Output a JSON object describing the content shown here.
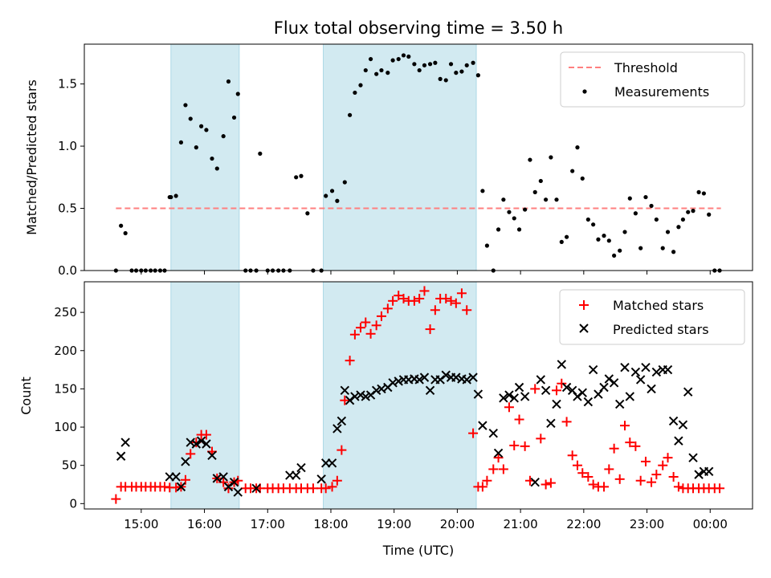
{
  "title": "Flux total observing time = 3.50 h",
  "colors": {
    "threshold": "#ff7f7f",
    "band": "#add8e6",
    "measurement": "#000000",
    "matched": "#ff0000",
    "predicted": "#000000"
  },
  "x_axis": {
    "label": "Time (UTC)",
    "range_hours": [
      14.1,
      24.67
    ],
    "ticks": [
      {
        "value": 15,
        "label": "15:00"
      },
      {
        "value": 16,
        "label": "16:00"
      },
      {
        "value": 17,
        "label": "17:00"
      },
      {
        "value": 18,
        "label": "18:00"
      },
      {
        "value": 19,
        "label": "19:00"
      },
      {
        "value": 20,
        "label": "20:00"
      },
      {
        "value": 21,
        "label": "21:00"
      },
      {
        "value": 22,
        "label": "22:00"
      },
      {
        "value": 23,
        "label": "23:00"
      },
      {
        "value": 24,
        "label": "00:00"
      }
    ]
  },
  "chart_data": [
    {
      "type": "scatter",
      "ylabel": "Matched/Predicted stars",
      "ylim": [
        0,
        1.82
      ],
      "yticks": [
        {
          "value": 0.0,
          "label": "0.0"
        },
        {
          "value": 0.5,
          "label": "0.5"
        },
        {
          "value": 1.0,
          "label": "1.0"
        },
        {
          "value": 1.5,
          "label": "1.5"
        }
      ],
      "bands": [
        [
          15.47,
          16.55
        ],
        [
          17.88,
          20.3
        ]
      ],
      "legend": {
        "position": "top-right",
        "entries": [
          {
            "label": "Threshold",
            "kind": "dashed-line"
          },
          {
            "label": "Measurements",
            "kind": "dot"
          }
        ]
      },
      "threshold": {
        "value": 0.5,
        "x": [
          14.6,
          24.17
        ]
      },
      "series": [
        {
          "name": "Measurements",
          "x": [
            14.6,
            14.68,
            14.75,
            14.85,
            14.92,
            15.0,
            15.07,
            15.15,
            15.22,
            15.3,
            15.37,
            15.45,
            15.47,
            15.55,
            15.63,
            15.7,
            15.78,
            15.87,
            15.95,
            16.03,
            16.12,
            16.2,
            16.3,
            16.38,
            16.47,
            16.53,
            16.65,
            16.73,
            16.82,
            16.88,
            17.0,
            17.08,
            17.17,
            17.25,
            17.35,
            17.45,
            17.53,
            17.63,
            17.72,
            17.85,
            17.92,
            18.02,
            18.1,
            18.22,
            18.3,
            18.38,
            18.47,
            18.55,
            18.63,
            18.72,
            18.8,
            18.9,
            18.98,
            19.07,
            19.15,
            19.23,
            19.32,
            19.4,
            19.48,
            19.57,
            19.65,
            19.73,
            19.82,
            19.9,
            19.98,
            20.07,
            20.15,
            20.25,
            20.33,
            20.4,
            20.47,
            20.57,
            20.65,
            20.73,
            20.82,
            20.9,
            20.98,
            21.07,
            21.15,
            21.23,
            21.32,
            21.4,
            21.48,
            21.57,
            21.65,
            21.73,
            21.82,
            21.9,
            21.98,
            22.07,
            22.15,
            22.23,
            22.32,
            22.4,
            22.48,
            22.57,
            22.65,
            22.73,
            22.82,
            22.9,
            22.98,
            23.07,
            23.15,
            23.25,
            23.33,
            23.42,
            23.5,
            23.57,
            23.65,
            23.73,
            23.82,
            23.9,
            23.98,
            24.07,
            24.15
          ],
          "y": [
            0.0,
            0.36,
            0.3,
            0.0,
            0.0,
            0.0,
            0.0,
            0.0,
            0.0,
            0.0,
            0.0,
            0.59,
            0.59,
            0.6,
            1.03,
            1.33,
            1.22,
            0.99,
            1.16,
            1.13,
            0.9,
            0.82,
            1.08,
            1.52,
            1.23,
            1.42,
            0.0,
            0.0,
            0.0,
            0.94,
            0.0,
            0.0,
            0.0,
            0.0,
            0.0,
            0.75,
            0.76,
            0.46,
            0.0,
            0.0,
            0.6,
            0.64,
            0.56,
            0.71,
            1.25,
            1.43,
            1.49,
            1.61,
            1.7,
            1.58,
            1.61,
            1.59,
            1.69,
            1.7,
            1.73,
            1.72,
            1.66,
            1.61,
            1.65,
            1.66,
            1.67,
            1.54,
            1.53,
            1.66,
            1.59,
            1.6,
            1.65,
            1.67,
            1.57,
            0.64,
            0.2,
            0.0,
            0.33,
            0.57,
            0.47,
            0.42,
            0.33,
            0.49,
            0.89,
            0.63,
            0.72,
            0.57,
            0.91,
            0.57,
            0.23,
            0.27,
            0.8,
            0.99,
            0.74,
            0.41,
            0.37,
            0.25,
            0.28,
            0.24,
            0.12,
            0.16,
            0.31,
            0.58,
            0.46,
            0.18,
            0.59,
            0.52,
            0.41,
            0.18,
            0.31,
            0.15,
            0.35,
            0.41,
            0.47,
            0.48,
            0.63,
            0.62,
            0.45,
            0.0,
            0.0
          ]
        }
      ]
    },
    {
      "type": "scatter",
      "ylabel": "Count",
      "ylim": [
        -7,
        290
      ],
      "yticks": [
        {
          "value": 0,
          "label": "0"
        },
        {
          "value": 50,
          "label": "50"
        },
        {
          "value": 100,
          "label": "100"
        },
        {
          "value": 150,
          "label": "150"
        },
        {
          "value": 200,
          "label": "200"
        },
        {
          "value": 250,
          "label": "250"
        }
      ],
      "bands": [
        [
          15.47,
          16.55
        ],
        [
          17.88,
          20.3
        ]
      ],
      "legend": {
        "position": "top-right",
        "entries": [
          {
            "label": "Matched stars",
            "kind": "plus"
          },
          {
            "label": "Predicted stars",
            "kind": "cross"
          }
        ]
      },
      "series": [
        {
          "name": "Matched stars",
          "marker": "plus",
          "x": [
            14.6,
            14.68,
            14.75,
            14.85,
            14.92,
            15.0,
            15.07,
            15.15,
            15.22,
            15.3,
            15.37,
            15.45,
            15.55,
            15.63,
            15.7,
            15.78,
            15.87,
            15.95,
            16.03,
            16.12,
            16.2,
            16.3,
            16.38,
            16.47,
            16.53,
            16.65,
            16.73,
            16.82,
            16.88,
            17.0,
            17.08,
            17.17,
            17.25,
            17.35,
            17.45,
            17.53,
            17.63,
            17.72,
            17.85,
            17.92,
            18.02,
            18.1,
            18.17,
            18.22,
            18.3,
            18.38,
            18.47,
            18.55,
            18.63,
            18.72,
            18.8,
            18.9,
            18.98,
            19.07,
            19.15,
            19.23,
            19.32,
            19.4,
            19.48,
            19.57,
            19.65,
            19.73,
            19.82,
            19.9,
            19.98,
            20.07,
            20.15,
            20.25,
            20.33,
            20.4,
            20.47,
            20.57,
            20.65,
            20.73,
            20.82,
            20.9,
            20.98,
            21.07,
            21.15,
            21.23,
            21.32,
            21.4,
            21.48,
            21.57,
            21.65,
            21.73,
            21.82,
            21.9,
            21.98,
            22.07,
            22.15,
            22.23,
            22.32,
            22.4,
            22.48,
            22.57,
            22.65,
            22.73,
            22.82,
            22.9,
            22.98,
            23.07,
            23.15,
            23.25,
            23.33,
            23.42,
            23.5,
            23.57,
            23.65,
            23.73,
            23.82,
            23.9,
            23.98,
            24.07,
            24.15
          ],
          "y": [
            6,
            22,
            22,
            22,
            22,
            22,
            22,
            22,
            22,
            22,
            22,
            21,
            21,
            22,
            31,
            65,
            80,
            90,
            90,
            68,
            33,
            28,
            20,
            28,
            30,
            20,
            20,
            20,
            20,
            20,
            20,
            20,
            20,
            20,
            20,
            20,
            20,
            20,
            20,
            20,
            22,
            30,
            70,
            135,
            187,
            221,
            230,
            237,
            222,
            233,
            245,
            255,
            265,
            272,
            268,
            265,
            265,
            268,
            278,
            228,
            253,
            268,
            268,
            265,
            262,
            275,
            253,
            92,
            22,
            22,
            30,
            45,
            60,
            45,
            126,
            76,
            110,
            75,
            30,
            150,
            85,
            25,
            27,
            148,
            157,
            107,
            63,
            50,
            40,
            35,
            25,
            22,
            22,
            45,
            72,
            32,
            102,
            80,
            75,
            30,
            55,
            28,
            38,
            50,
            60,
            35,
            22,
            20,
            20,
            20,
            20,
            20,
            20,
            20,
            20
          ],
          "_yfix": []
        },
        {
          "name": "Predicted stars",
          "marker": "cross",
          "x": [
            14.68,
            14.75,
            15.45,
            15.55,
            15.63,
            15.7,
            15.78,
            15.87,
            15.95,
            16.03,
            16.12,
            16.2,
            16.3,
            16.38,
            16.47,
            16.53,
            16.82,
            17.35,
            17.45,
            17.53,
            17.85,
            17.92,
            18.02,
            18.1,
            18.17,
            18.22,
            18.3,
            18.38,
            18.47,
            18.55,
            18.63,
            18.72,
            18.8,
            18.9,
            18.98,
            19.07,
            19.15,
            19.23,
            19.32,
            19.4,
            19.48,
            19.57,
            19.65,
            19.73,
            19.82,
            19.9,
            19.98,
            20.07,
            20.15,
            20.25,
            20.33,
            20.4,
            20.57,
            20.65,
            20.73,
            20.82,
            20.9,
            20.98,
            21.07,
            21.23,
            21.32,
            21.4,
            21.48,
            21.57,
            21.65,
            21.73,
            21.82,
            21.9,
            21.98,
            22.07,
            22.15,
            22.23,
            22.32,
            22.4,
            22.48,
            22.57,
            22.65,
            22.73,
            22.82,
            22.9,
            22.98,
            23.07,
            23.15,
            23.25,
            23.33,
            23.42,
            23.5,
            23.57,
            23.65,
            23.73,
            23.82,
            23.9,
            23.98
          ],
          "y": [
            62,
            80,
            35,
            35,
            22,
            55,
            80,
            78,
            82,
            78,
            63,
            33,
            35,
            22,
            28,
            15,
            20,
            37,
            37,
            47,
            32,
            53,
            53,
            98,
            108,
            148,
            135,
            140,
            142,
            140,
            142,
            148,
            150,
            152,
            158,
            160,
            162,
            162,
            163,
            162,
            165,
            148,
            162,
            162,
            168,
            165,
            165,
            163,
            162,
            165,
            143,
            102,
            92,
            66,
            138,
            142,
            138,
            152,
            140,
            28,
            162,
            148,
            105,
            130,
            182,
            152,
            148,
            140,
            145,
            133,
            175,
            143,
            152,
            163,
            158,
            130,
            178,
            140,
            172,
            162,
            178,
            150,
            172,
            175,
            175,
            108,
            82,
            103,
            146,
            60,
            38,
            42,
            42
          ]
        }
      ]
    }
  ]
}
